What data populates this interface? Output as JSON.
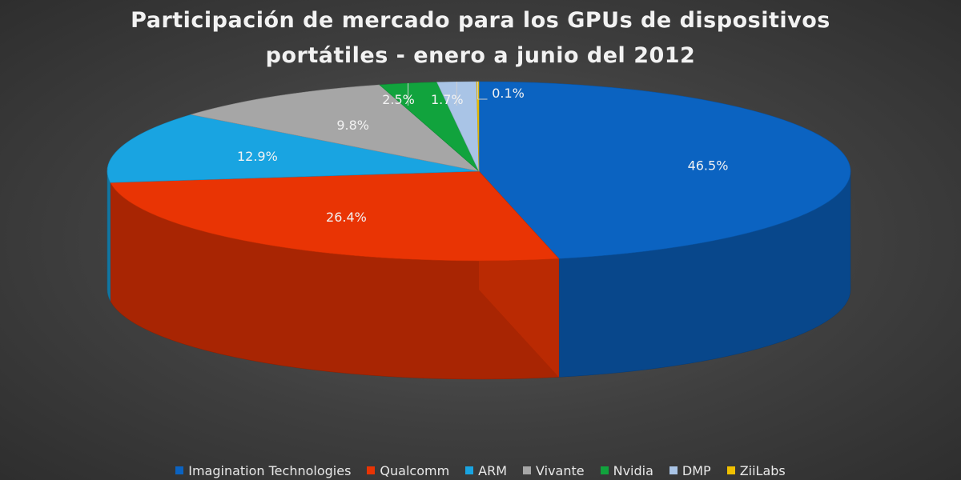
{
  "chart_data": {
    "type": "pie",
    "title_lines": [
      "Participación de mercado para los GPUs de dispositivos",
      "portátiles - enero a junio del 2012"
    ],
    "slices": [
      {
        "name": "Imagination Technologies",
        "value": 46.5,
        "label": "46.5%",
        "color": "#0b63c1"
      },
      {
        "name": "Qualcomm",
        "value": 26.4,
        "label": "26.4%",
        "color": "#e93404"
      },
      {
        "name": "ARM",
        "value": 12.9,
        "label": "12.9%",
        "color": "#19a4e1"
      },
      {
        "name": "Vivante",
        "value": 9.8,
        "label": "9.8%",
        "color": "#a6a6a6"
      },
      {
        "name": "Nvidia",
        "value": 2.5,
        "label": "2.5%",
        "color": "#11a33d"
      },
      {
        "name": "DMP",
        "value": 1.7,
        "label": "1.7%",
        "color": "#a9c4e6"
      },
      {
        "name": "ZiiLabs",
        "value": 0.1,
        "label": "0.1%",
        "color": "#f0c000"
      }
    ],
    "legend_position": "bottom",
    "style": "3d-pie"
  }
}
